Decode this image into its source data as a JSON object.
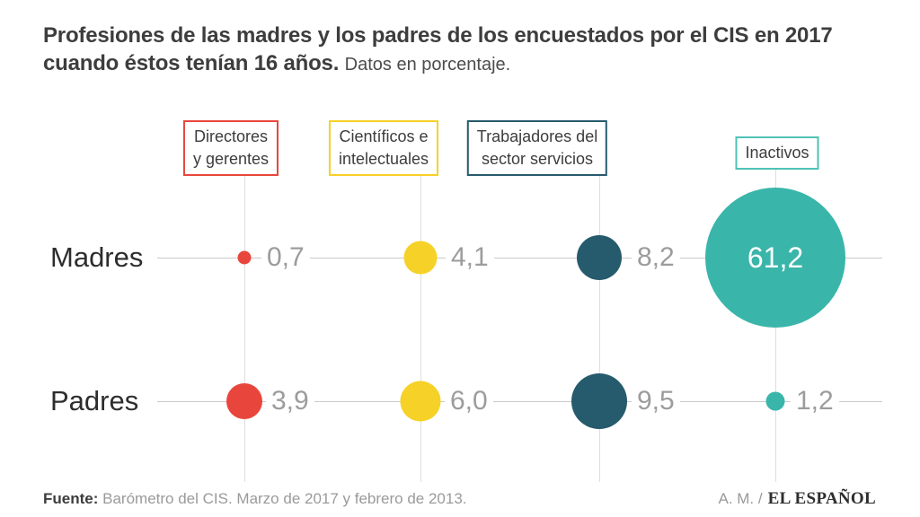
{
  "header": {
    "title_line1": "Profesiones de las madres y los padres de los encuestados por el CIS en 2017",
    "title_line2": "cuando éstos tenían 16 años.",
    "subtitle": "Datos en porcentaje."
  },
  "chart_data": {
    "type": "bubble",
    "title": "Profesiones de las madres y los padres de los encuestados por el CIS en 2017 cuando éstos tenían 16 años.",
    "subtitle": "Datos en porcentaje.",
    "unit": "percent",
    "categories": [
      "Directores y gerentes",
      "Científicos e intelectuales",
      "Trabajadores del sector servicios",
      "Inactivos"
    ],
    "category_lines": [
      [
        "Directores",
        "y gerentes"
      ],
      [
        "Científicos e",
        "intelectuales"
      ],
      [
        "Trabajadores del",
        "sector servicios"
      ],
      [
        "Inactivos"
      ]
    ],
    "category_colors": [
      "#e8463c",
      "#f6d127",
      "#265a6d",
      "#3ab5aa"
    ],
    "inactivos_box_border": "#4fc2b6",
    "rows": [
      {
        "label": "Madres",
        "values": [
          0.7,
          4.1,
          8.2,
          61.2
        ],
        "labels": [
          "0,7",
          "4,1",
          "8,2",
          "61,2"
        ]
      },
      {
        "label": "Padres",
        "values": [
          3.9,
          6.0,
          9.5,
          1.2
        ],
        "labels": [
          "3,9",
          "6,0",
          "9,5",
          "1,2"
        ]
      }
    ],
    "legend_position": "top",
    "bubble_sizing": "area proportional to value",
    "value_label_color": "#9c9c9c",
    "grid_color": "#dedede"
  },
  "footer": {
    "source_label": "Fuente:",
    "source_text": "Barómetro del CIS. Marzo de 2017 y febrero de 2013.",
    "author": "A. M. /",
    "brand": "EL ESPAÑOL"
  }
}
